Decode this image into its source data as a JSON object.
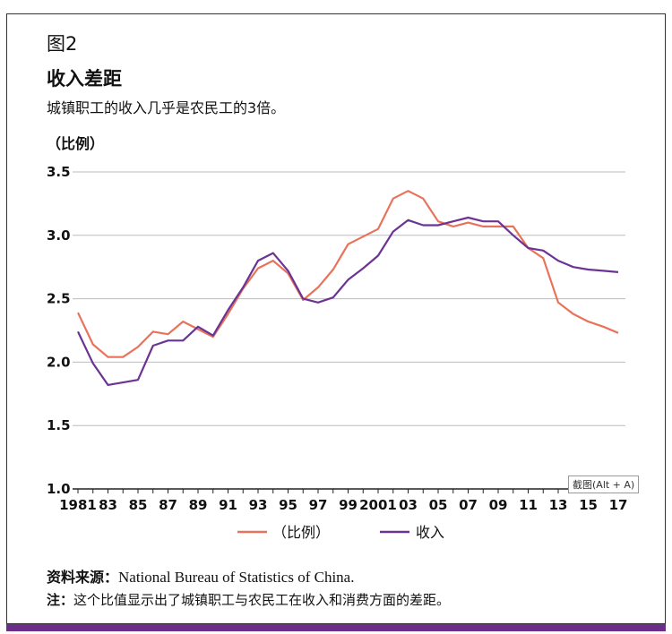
{
  "figure": {
    "number": "图2",
    "title": "收入差距",
    "subtitle": "城镇职工的收入几乎是农民工的3倍。",
    "unit_label": "（比例）"
  },
  "chart_data": {
    "type": "line",
    "x": [
      1981,
      1982,
      1983,
      1984,
      1985,
      1986,
      1987,
      1988,
      1989,
      1990,
      1991,
      1992,
      1993,
      1994,
      1995,
      1996,
      1997,
      1998,
      1999,
      2000,
      2001,
      2002,
      2003,
      2004,
      2005,
      2006,
      2007,
      2008,
      2009,
      2010,
      2011,
      2012,
      2013,
      2014,
      2015,
      2016,
      2017
    ],
    "xtick_values": [
      1981,
      1983,
      1985,
      1987,
      1989,
      1991,
      1993,
      1995,
      1997,
      1999,
      2001,
      2003,
      2005,
      2007,
      2009,
      2011,
      2013,
      2015,
      2017
    ],
    "xtick_labels": [
      "1981",
      "83",
      "85",
      "87",
      "89",
      "91",
      "93",
      "95",
      "97",
      "99",
      "2001",
      "03",
      "05",
      "07",
      "09",
      "11",
      "13",
      "15",
      "17"
    ],
    "ytick_values": [
      1.0,
      1.5,
      2.0,
      2.5,
      3.0,
      3.5
    ],
    "ytick_labels": [
      "1.0",
      "1.5",
      "2.0",
      "2.5",
      "3.0",
      "3.5"
    ],
    "ylim": [
      1.0,
      3.5
    ],
    "grid": true,
    "series": [
      {
        "name": "（比例）",
        "color": "#e8735a",
        "values": [
          2.39,
          2.14,
          2.04,
          2.04,
          2.12,
          2.24,
          2.22,
          2.32,
          2.26,
          2.2,
          2.38,
          2.58,
          2.74,
          2.8,
          2.7,
          2.49,
          2.59,
          2.73,
          2.93,
          2.99,
          3.05,
          3.29,
          3.35,
          3.29,
          3.11,
          3.07,
          3.1,
          3.07,
          3.07,
          3.07,
          2.9,
          2.82,
          2.47,
          2.38,
          2.32,
          2.28,
          2.23
        ]
      },
      {
        "name": "收入",
        "color": "#6b3494",
        "values": [
          2.24,
          1.99,
          1.82,
          1.84,
          1.86,
          2.13,
          2.17,
          2.17,
          2.28,
          2.21,
          2.41,
          2.59,
          2.8,
          2.86,
          2.72,
          2.5,
          2.47,
          2.51,
          2.65,
          2.74,
          2.84,
          3.03,
          3.12,
          3.08,
          3.08,
          3.11,
          3.14,
          3.11,
          3.11,
          3.0,
          2.9,
          2.88,
          2.8,
          2.75,
          2.73,
          2.72,
          2.71
        ]
      }
    ],
    "legend": [
      "（比例）",
      "收入"
    ]
  },
  "source": {
    "label": "资料来源：",
    "text": "National Bureau of Statistics of China."
  },
  "note": {
    "label": "注：",
    "text": "这个比值显示出了城镇职工与农民工在收入和消费方面的差距。"
  },
  "overlay": {
    "screenshot_hint": "截图(Alt + A)"
  }
}
